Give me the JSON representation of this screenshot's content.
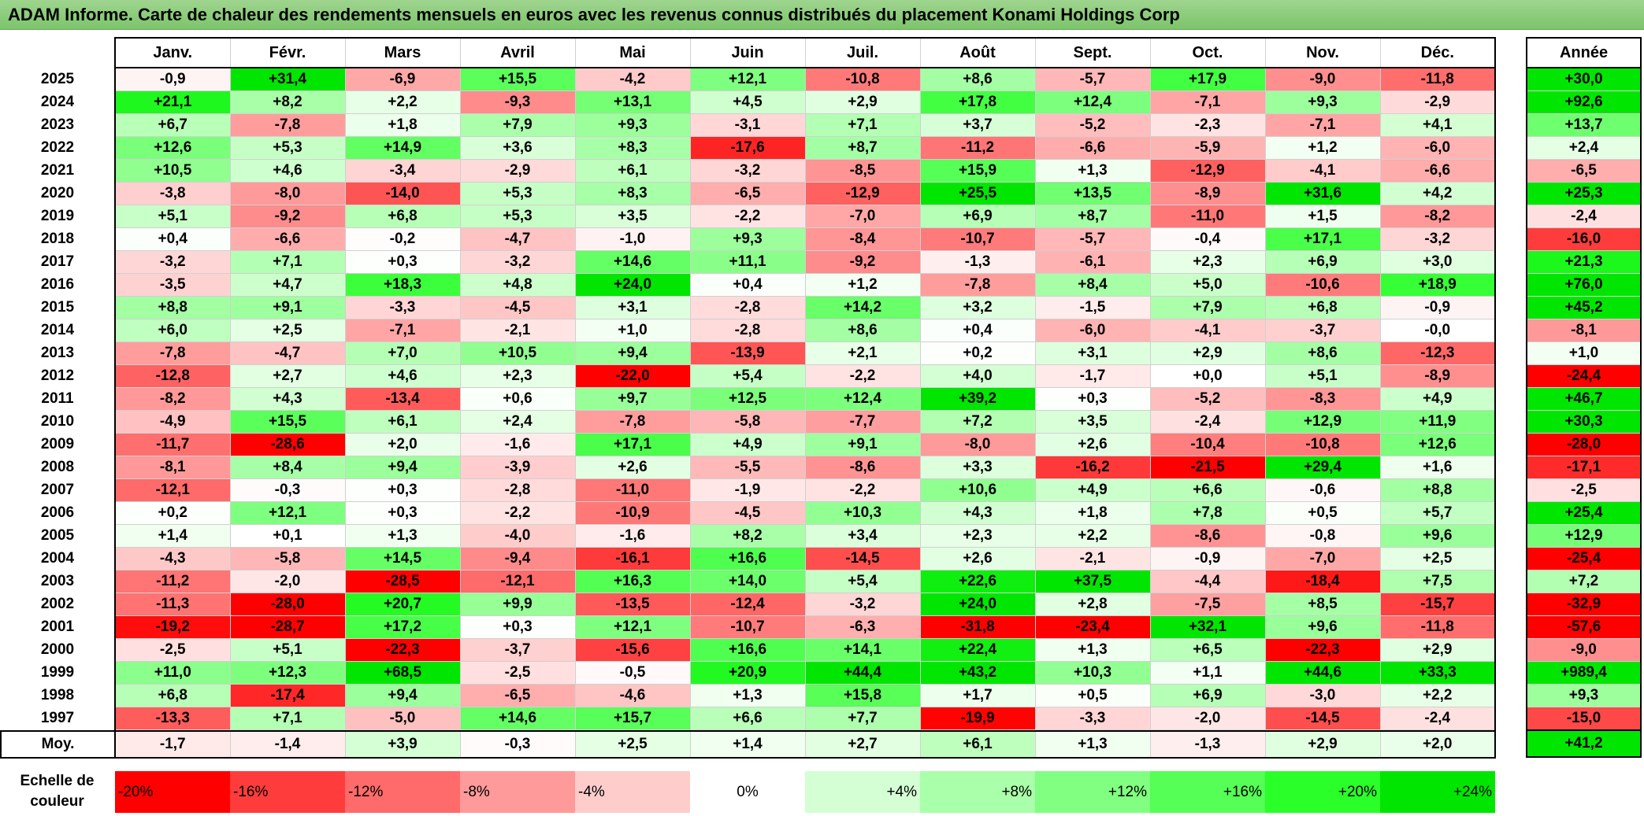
{
  "title": "ADAM Informe. Carte de chaleur des rendements mensuels en euros avec les revenus connus distribués du placement Konami Holdings Corp",
  "chart_data": {
    "type": "heatmap",
    "title": "ADAM Informe. Carte de chaleur des rendements mensuels en euros avec les revenus connus distribués du placement Konami Holdings Corp",
    "columns": [
      "Janv.",
      "Févr.",
      "Mars",
      "Avril",
      "Mai",
      "Juin",
      "Juil.",
      "Août",
      "Sept.",
      "Oct.",
      "Nov.",
      "Déc."
    ],
    "year_column_label": "Année",
    "rows": [
      {
        "year": "2025",
        "values": [
          "-0,9",
          "+31,4",
          "-6,9",
          "+15,5",
          "-4,2",
          "+12,1",
          "-10,8",
          "+8,6",
          "-5,7",
          "+17,9",
          "-9,0",
          "-11,8"
        ],
        "annual": "+30,0"
      },
      {
        "year": "2024",
        "values": [
          "+21,1",
          "+8,2",
          "+2,2",
          "-9,3",
          "+13,1",
          "+4,5",
          "+2,9",
          "+17,8",
          "+12,4",
          "-7,1",
          "+9,3",
          "-2,9"
        ],
        "annual": "+92,6"
      },
      {
        "year": "2023",
        "values": [
          "+6,7",
          "-7,8",
          "+1,8",
          "+7,9",
          "+9,3",
          "-3,1",
          "+7,1",
          "+3,7",
          "-5,2",
          "-2,3",
          "-7,1",
          "+4,1"
        ],
        "annual": "+13,7"
      },
      {
        "year": "2022",
        "values": [
          "+12,6",
          "+5,3",
          "+14,9",
          "+3,6",
          "+8,3",
          "-17,6",
          "+8,7",
          "-11,2",
          "-6,6",
          "-5,9",
          "+1,2",
          "-6,0"
        ],
        "annual": "+2,4"
      },
      {
        "year": "2021",
        "values": [
          "+10,5",
          "+4,6",
          "-3,4",
          "-2,9",
          "+6,1",
          "-3,2",
          "-8,5",
          "+15,9",
          "+1,3",
          "-12,9",
          "-4,1",
          "-6,6"
        ],
        "annual": "-6,5"
      },
      {
        "year": "2020",
        "values": [
          "-3,8",
          "-8,0",
          "-14,0",
          "+5,3",
          "+8,3",
          "-6,5",
          "-12,9",
          "+25,5",
          "+13,5",
          "-8,9",
          "+31,6",
          "+4,2"
        ],
        "annual": "+25,3"
      },
      {
        "year": "2019",
        "values": [
          "+5,1",
          "-9,2",
          "+6,8",
          "+5,3",
          "+3,5",
          "-2,2",
          "-7,0",
          "+6,9",
          "+8,7",
          "-11,0",
          "+1,5",
          "-8,2"
        ],
        "annual": "-2,4"
      },
      {
        "year": "2018",
        "values": [
          "+0,4",
          "-6,6",
          "-0,2",
          "-4,7",
          "-1,0",
          "+9,3",
          "-8,4",
          "-10,7",
          "-5,7",
          "-0,4",
          "+17,1",
          "-3,2"
        ],
        "annual": "-16,0"
      },
      {
        "year": "2017",
        "values": [
          "-3,2",
          "+7,1",
          "+0,3",
          "-3,2",
          "+14,6",
          "+11,1",
          "-9,2",
          "-1,3",
          "-6,1",
          "+2,3",
          "+6,9",
          "+3,0"
        ],
        "annual": "+21,3"
      },
      {
        "year": "2016",
        "values": [
          "-3,5",
          "+4,7",
          "+18,3",
          "+4,8",
          "+24,0",
          "+0,4",
          "+1,2",
          "-7,8",
          "+8,4",
          "+5,0",
          "-10,6",
          "+18,9"
        ],
        "annual": "+76,0"
      },
      {
        "year": "2015",
        "values": [
          "+8,8",
          "+9,1",
          "-3,3",
          "-4,5",
          "+3,1",
          "-2,8",
          "+14,2",
          "+3,2",
          "-1,5",
          "+7,9",
          "+6,8",
          "-0,9"
        ],
        "annual": "+45,2"
      },
      {
        "year": "2014",
        "values": [
          "+6,0",
          "+2,5",
          "-7,1",
          "-2,1",
          "+1,0",
          "-2,8",
          "+8,6",
          "+0,4",
          "-6,0",
          "-4,1",
          "-3,7",
          "-0,0"
        ],
        "annual": "-8,1"
      },
      {
        "year": "2013",
        "values": [
          "-7,8",
          "-4,7",
          "+7,0",
          "+10,5",
          "+9,4",
          "-13,9",
          "+2,1",
          "+0,2",
          "+3,1",
          "+2,9",
          "+8,6",
          "-12,3"
        ],
        "annual": "+1,0"
      },
      {
        "year": "2012",
        "values": [
          "-12,8",
          "+2,7",
          "+4,6",
          "+2,3",
          "-22,0",
          "+5,4",
          "-2,2",
          "+4,0",
          "-1,7",
          "+0,0",
          "+5,1",
          "-8,9"
        ],
        "annual": "-24,4"
      },
      {
        "year": "2011",
        "values": [
          "-8,2",
          "+4,3",
          "-13,4",
          "+0,6",
          "+9,7",
          "+12,5",
          "+12,4",
          "+39,2",
          "+0,3",
          "-5,2",
          "-8,3",
          "+4,9"
        ],
        "annual": "+46,7"
      },
      {
        "year": "2010",
        "values": [
          "-4,9",
          "+15,5",
          "+6,1",
          "+2,4",
          "-7,8",
          "-5,8",
          "-7,7",
          "+7,2",
          "+3,5",
          "-2,4",
          "+12,9",
          "+11,9"
        ],
        "annual": "+30,3"
      },
      {
        "year": "2009",
        "values": [
          "-11,7",
          "-28,6",
          "+2,0",
          "-1,6",
          "+17,1",
          "+4,9",
          "+9,1",
          "-8,0",
          "+2,6",
          "-10,4",
          "-10,8",
          "+12,6"
        ],
        "annual": "-28,0"
      },
      {
        "year": "2008",
        "values": [
          "-8,1",
          "+8,4",
          "+9,4",
          "-3,9",
          "+2,6",
          "-5,5",
          "-8,6",
          "+3,3",
          "-16,2",
          "-21,5",
          "+29,4",
          "+1,6"
        ],
        "annual": "-17,1"
      },
      {
        "year": "2007",
        "values": [
          "-12,1",
          "-0,3",
          "+0,3",
          "-2,8",
          "-11,0",
          "-1,9",
          "-2,2",
          "+10,6",
          "+4,9",
          "+6,6",
          "-0,6",
          "+8,8"
        ],
        "annual": "-2,5"
      },
      {
        "year": "2006",
        "values": [
          "+0,2",
          "+12,1",
          "+0,3",
          "-2,2",
          "-10,9",
          "-4,5",
          "+10,3",
          "+4,3",
          "+1,8",
          "+7,8",
          "+0,5",
          "+5,7"
        ],
        "annual": "+25,4"
      },
      {
        "year": "2005",
        "values": [
          "+1,4",
          "+0,1",
          "+1,3",
          "-4,0",
          "-1,6",
          "+8,2",
          "+3,4",
          "+2,3",
          "+2,2",
          "-8,6",
          "-0,8",
          "+9,6"
        ],
        "annual": "+12,9"
      },
      {
        "year": "2004",
        "values": [
          "-4,3",
          "-5,8",
          "+14,5",
          "-9,4",
          "-16,1",
          "+16,6",
          "-14,5",
          "+2,6",
          "-2,1",
          "-0,9",
          "-7,0",
          "+2,5"
        ],
        "annual": "-25,4"
      },
      {
        "year": "2003",
        "values": [
          "-11,2",
          "-2,0",
          "-28,5",
          "-12,1",
          "+16,3",
          "+14,0",
          "+5,4",
          "+22,6",
          "+37,5",
          "-4,4",
          "-18,4",
          "+7,5"
        ],
        "annual": "+7,2"
      },
      {
        "year": "2002",
        "values": [
          "-11,3",
          "-28,0",
          "+20,7",
          "+9,9",
          "-13,5",
          "-12,4",
          "-3,2",
          "+24,0",
          "+2,8",
          "-7,5",
          "+8,5",
          "-15,7"
        ],
        "annual": "-32,9"
      },
      {
        "year": "2001",
        "values": [
          "-19,2",
          "-28,7",
          "+17,2",
          "+0,3",
          "+12,1",
          "-10,7",
          "-6,3",
          "-31,8",
          "-23,4",
          "+32,1",
          "+9,6",
          "-11,8"
        ],
        "annual": "-57,6"
      },
      {
        "year": "2000",
        "values": [
          "-2,5",
          "+5,1",
          "-22,3",
          "-3,7",
          "-15,6",
          "+16,6",
          "+14,1",
          "+22,4",
          "+1,3",
          "+6,5",
          "-22,3",
          "+2,9"
        ],
        "annual": "-9,0"
      },
      {
        "year": "1999",
        "values": [
          "+11,0",
          "+12,3",
          "+68,5",
          "-2,5",
          "-0,5",
          "+20,9",
          "+44,4",
          "+43,2",
          "+10,3",
          "+1,1",
          "+44,6",
          "+33,3"
        ],
        "annual": "+989,4"
      },
      {
        "year": "1998",
        "values": [
          "+6,8",
          "-17,4",
          "+9,4",
          "-6,5",
          "-4,6",
          "+1,3",
          "+15,8",
          "+1,7",
          "+0,5",
          "+6,9",
          "-3,0",
          "+2,2"
        ],
        "annual": "+9,3"
      },
      {
        "year": "1997",
        "values": [
          "-13,3",
          "+7,1",
          "-5,0",
          "+14,6",
          "+15,7",
          "+6,6",
          "+7,7",
          "-19,9",
          "-3,3",
          "-2,0",
          "-14,5",
          "-2,4"
        ],
        "annual": "-15,0"
      }
    ],
    "average": {
      "label": "Moy.",
      "values": [
        "-1,7",
        "-1,4",
        "+3,9",
        "-0,3",
        "+2,5",
        "+1,4",
        "+2,7",
        "+6,1",
        "+1,3",
        "-1,3",
        "+2,9",
        "+2,0"
      ],
      "annual": "+41,2"
    },
    "scale": {
      "label": "Echelle de couleur",
      "stops": [
        {
          "label": "-20%",
          "value": -20,
          "color": "#ff0000"
        },
        {
          "label": "-16%",
          "value": -16,
          "color": "#ff3c3c"
        },
        {
          "label": "-12%",
          "value": -12,
          "color": "#ff6b6b"
        },
        {
          "label": "-8%",
          "value": -8,
          "color": "#ff9a9a"
        },
        {
          "label": "-4%",
          "value": -4,
          "color": "#ffcccc"
        },
        {
          "label": "0%",
          "value": 0,
          "color": "#ffffff"
        },
        {
          "label": "+4%",
          "value": 4,
          "color": "#d4ffd4"
        },
        {
          "label": "+8%",
          "value": 8,
          "color": "#aaffaa"
        },
        {
          "label": "+12%",
          "value": 12,
          "color": "#80ff80"
        },
        {
          "label": "+16%",
          "value": 16,
          "color": "#55ff55"
        },
        {
          "label": "+20%",
          "value": 20,
          "color": "#2aff2a"
        },
        {
          "label": "+24%",
          "value": 24,
          "color": "#00e600"
        }
      ]
    }
  }
}
